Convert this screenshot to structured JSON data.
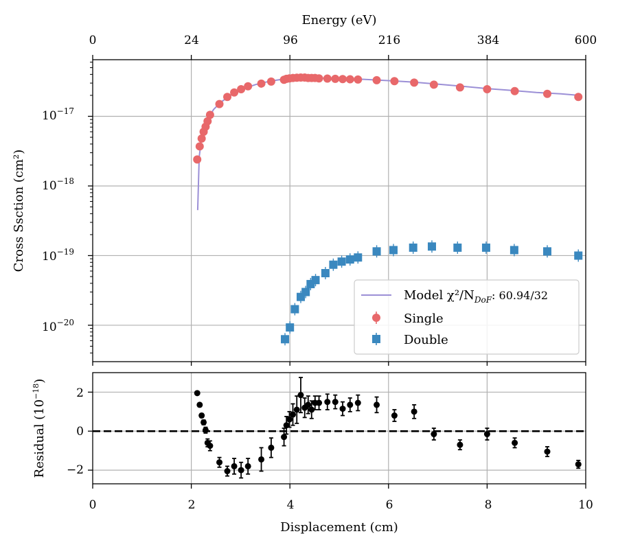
{
  "chart_data": [
    {
      "type": "scatter",
      "panel": "main",
      "top_xlabel": "Energy (eV)",
      "top_ticks": [
        "0",
        "24",
        "96",
        "216",
        "384",
        "600"
      ],
      "ylabel": "Cross Ssction (cm²)",
      "yscale": "log",
      "ylim": [
        3e-21,
        6.5e-17
      ],
      "xlim": [
        0,
        10
      ],
      "y_ticks": [
        {
          "value": 1e-17,
          "label": "10",
          "exp": "−17"
        },
        {
          "value": 1e-18,
          "label": "10",
          "exp": "−18"
        },
        {
          "value": 1e-19,
          "label": "10",
          "exp": "−19"
        },
        {
          "value": 1e-20,
          "label": "10",
          "exp": "−20"
        }
      ],
      "legend": {
        "position": "lower-right",
        "model_label": "Model χ²/N",
        "model_sub": "DoF",
        "model_suffix": ": 60.94/32",
        "single_label": "Single",
        "double_label": "Double"
      },
      "colors": {
        "single": "#e8686a",
        "double": "#3a88bf",
        "model": "#9b8fd6"
      },
      "series": [
        {
          "name": "Single",
          "x": [
            2.12,
            2.17,
            2.21,
            2.25,
            2.29,
            2.33,
            2.38,
            2.57,
            2.73,
            2.87,
            3.01,
            3.15,
            3.42,
            3.62,
            3.88,
            3.93,
            3.99,
            4.06,
            4.14,
            4.22,
            4.3,
            4.37,
            4.44,
            4.51,
            4.59,
            4.76,
            4.92,
            5.07,
            5.22,
            5.38,
            5.76,
            6.12,
            6.52,
            6.92,
            7.45,
            8.0,
            8.56,
            9.22,
            9.85
          ],
          "y": [
            2.4e-18,
            3.7e-18,
            4.8e-18,
            6e-18,
            7.1e-18,
            8.5e-18,
            1.05e-17,
            1.5e-17,
            1.9e-17,
            2.2e-17,
            2.45e-17,
            2.7e-17,
            2.95e-17,
            3.15e-17,
            3.35e-17,
            3.45e-17,
            3.5e-17,
            3.55e-17,
            3.58e-17,
            3.6e-17,
            3.6e-17,
            3.55e-17,
            3.55e-17,
            3.55e-17,
            3.5e-17,
            3.48e-17,
            3.45e-17,
            3.42e-17,
            3.4e-17,
            3.38e-17,
            3.3e-17,
            3.2e-17,
            3.05e-17,
            2.85e-17,
            2.6e-17,
            2.45e-17,
            2.3e-17,
            2.1e-17,
            1.9e-17
          ]
        },
        {
          "name": "Double",
          "x": [
            3.9,
            4.0,
            4.1,
            4.22,
            4.32,
            4.42,
            4.52,
            4.72,
            4.88,
            5.05,
            5.22,
            5.38,
            5.76,
            6.1,
            6.5,
            6.88,
            7.4,
            7.98,
            8.55,
            9.22,
            9.85
          ],
          "y": [
            6.3e-21,
            9.3e-21,
            1.7e-20,
            2.55e-20,
            3e-20,
            3.9e-20,
            4.45e-20,
            5.6e-20,
            7.4e-20,
            8.2e-20,
            8.8e-20,
            9.4e-20,
            1.15e-19,
            1.2e-19,
            1.3e-19,
            1.35e-19,
            1.3e-19,
            1.3e-19,
            1.2e-19,
            1.15e-19,
            1e-19
          ]
        },
        {
          "name": "Model",
          "kind": "line",
          "x": [
            2.13,
            2.16,
            2.2,
            2.26,
            2.35,
            2.45,
            2.6,
            2.8,
            3.0,
            3.3,
            3.6,
            3.9,
            4.2,
            4.5,
            5.0,
            5.5,
            6.0,
            6.5,
            7.0,
            7.5,
            8.0,
            8.5,
            9.0,
            9.5,
            9.85
          ],
          "y": [
            4.5e-19,
            2.6e-18,
            4.5e-18,
            6.5e-18,
            9.5e-18,
            1.25e-17,
            1.6e-17,
            2e-17,
            2.4e-17,
            2.85e-17,
            3.2e-17,
            3.45e-17,
            3.55e-17,
            3.55e-17,
            3.5e-17,
            3.4e-17,
            3.25e-17,
            3.1e-17,
            2.9e-17,
            2.7e-17,
            2.5e-17,
            2.35e-17,
            2.2e-17,
            2.1e-17,
            2e-17
          ]
        }
      ]
    },
    {
      "type": "scatter",
      "panel": "residual",
      "xlabel": "Displacement (cm)",
      "ylabel": "Residual (10",
      "ylabel_exp": "−18",
      "ylabel_close": ")",
      "xlim": [
        0,
        10
      ],
      "ylim": [
        -2.7,
        3.0
      ],
      "x_ticks": [
        "0",
        "2",
        "4",
        "6",
        "8",
        "10"
      ],
      "y_ticks": [
        {
          "value": 2,
          "label": "2"
        },
        {
          "value": 0,
          "label": "0"
        },
        {
          "value": -2,
          "label": "−2"
        }
      ],
      "reference_line": 0,
      "series": [
        {
          "name": "Residual",
          "x": [
            2.12,
            2.17,
            2.21,
            2.25,
            2.29,
            2.33,
            2.38,
            2.57,
            2.73,
            2.87,
            3.01,
            3.15,
            3.42,
            3.62,
            3.88,
            3.93,
            3.99,
            4.06,
            4.14,
            4.22,
            4.3,
            4.37,
            4.44,
            4.51,
            4.59,
            4.76,
            4.92,
            5.07,
            5.22,
            5.38,
            5.76,
            6.12,
            6.52,
            6.92,
            7.45,
            8.0,
            8.56,
            9.22,
            9.85
          ],
          "y": [
            1.95,
            1.35,
            0.8,
            0.45,
            0.05,
            -0.6,
            -0.75,
            -1.6,
            -2.05,
            -1.8,
            -2.0,
            -1.8,
            -1.45,
            -0.85,
            -0.3,
            0.3,
            0.6,
            0.85,
            1.1,
            1.85,
            1.2,
            1.35,
            1.1,
            1.45,
            1.45,
            1.5,
            1.5,
            1.15,
            1.35,
            1.45,
            1.35,
            0.8,
            1.0,
            -0.15,
            -0.7,
            -0.15,
            -0.6,
            -1.05,
            -1.7
          ],
          "err": [
            0.05,
            0.05,
            0.1,
            0.12,
            0.15,
            0.2,
            0.25,
            0.25,
            0.25,
            0.4,
            0.4,
            0.4,
            0.6,
            0.5,
            0.45,
            0.45,
            0.4,
            0.55,
            0.7,
            0.9,
            0.5,
            0.45,
            0.45,
            0.35,
            0.35,
            0.4,
            0.35,
            0.35,
            0.35,
            0.4,
            0.4,
            0.3,
            0.35,
            0.3,
            0.25,
            0.3,
            0.25,
            0.25,
            0.2
          ]
        }
      ]
    }
  ]
}
